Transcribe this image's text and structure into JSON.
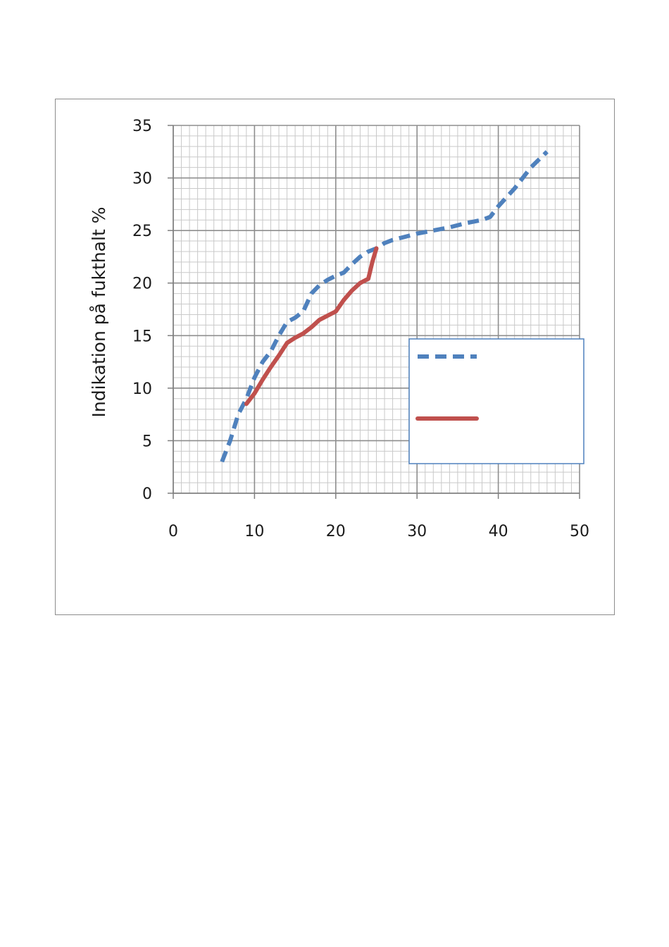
{
  "chart_data": {
    "type": "line",
    "title": "",
    "xlabel": "",
    "ylabel": "Indikation på fukthalt %",
    "xlim": [
      0,
      50
    ],
    "ylim": [
      0,
      35
    ],
    "xticks": [
      0,
      10,
      20,
      30,
      40,
      50
    ],
    "yticks": [
      0,
      5,
      10,
      15,
      20,
      25,
      30,
      35
    ],
    "grid": true,
    "legend_position": "right, middle",
    "series": [
      {
        "style": "dashed",
        "color": "#4f81bd",
        "x": [
          6,
          7,
          8,
          9,
          10,
          11,
          12,
          13,
          14,
          15,
          16,
          17,
          18,
          19,
          20,
          21,
          22,
          23,
          24,
          25,
          26,
          27,
          28,
          29,
          30,
          32,
          34,
          36,
          38,
          39,
          40,
          42,
          44,
          46
        ],
        "y": [
          3,
          5,
          7.5,
          9,
          11,
          12.5,
          13.5,
          15,
          16.3,
          16.7,
          17.3,
          19,
          19.8,
          20.3,
          20.7,
          21,
          21.8,
          22.5,
          23,
          23.3,
          23.8,
          24.1,
          24.3,
          24.5,
          24.7,
          25,
          25.3,
          25.7,
          26,
          26.3,
          27.3,
          29,
          31,
          32.5
        ]
      },
      {
        "style": "solid",
        "color": "#c0504d",
        "x": [
          9,
          10,
          11,
          12,
          13,
          14,
          15,
          16,
          17,
          18,
          19,
          20,
          21,
          22,
          23,
          24,
          24.5,
          25
        ],
        "y": [
          8.5,
          9.5,
          10.8,
          12,
          13.1,
          14.3,
          14.8,
          15.2,
          15.8,
          16.5,
          16.9,
          17.3,
          18.4,
          19.3,
          20,
          20.4,
          22,
          23.3
        ]
      }
    ]
  }
}
